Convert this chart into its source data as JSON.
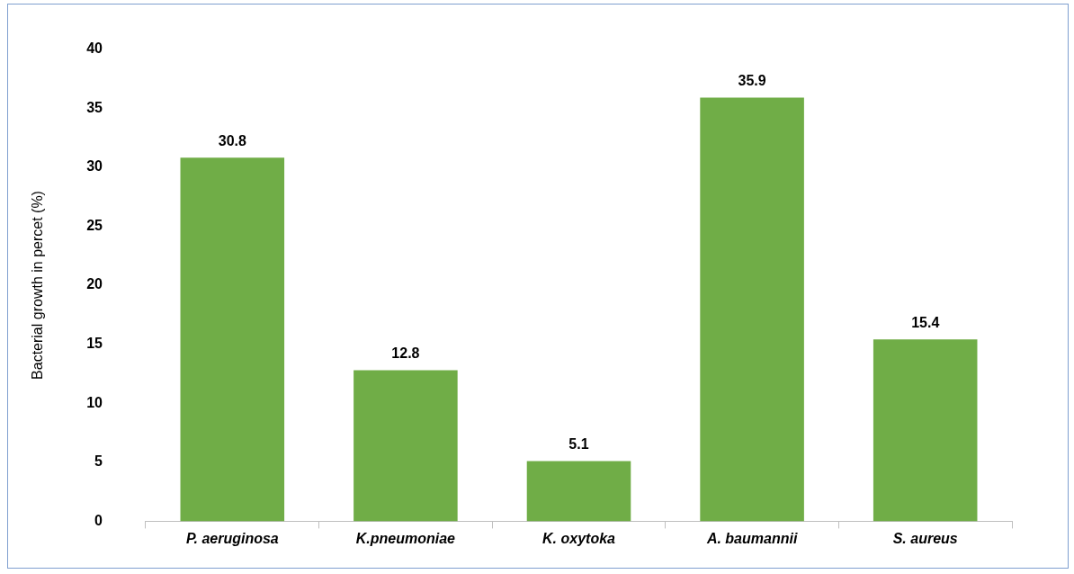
{
  "chart_data": {
    "type": "bar",
    "ylabel": "Bacterial growth in percet (%)",
    "categories": [
      "P. aeruginosa",
      "K.pneumoniae",
      "K. oxytoka",
      "A. baumannii",
      "S. aureus"
    ],
    "values": [
      30.8,
      12.8,
      5.1,
      35.9,
      15.4
    ],
    "color": "#70ad47",
    "ylim": [
      0,
      40
    ],
    "yticks": [
      0,
      5,
      10,
      15,
      20,
      25,
      30,
      35,
      40
    ],
    "grid": false,
    "legend": false,
    "data_labels": true
  }
}
